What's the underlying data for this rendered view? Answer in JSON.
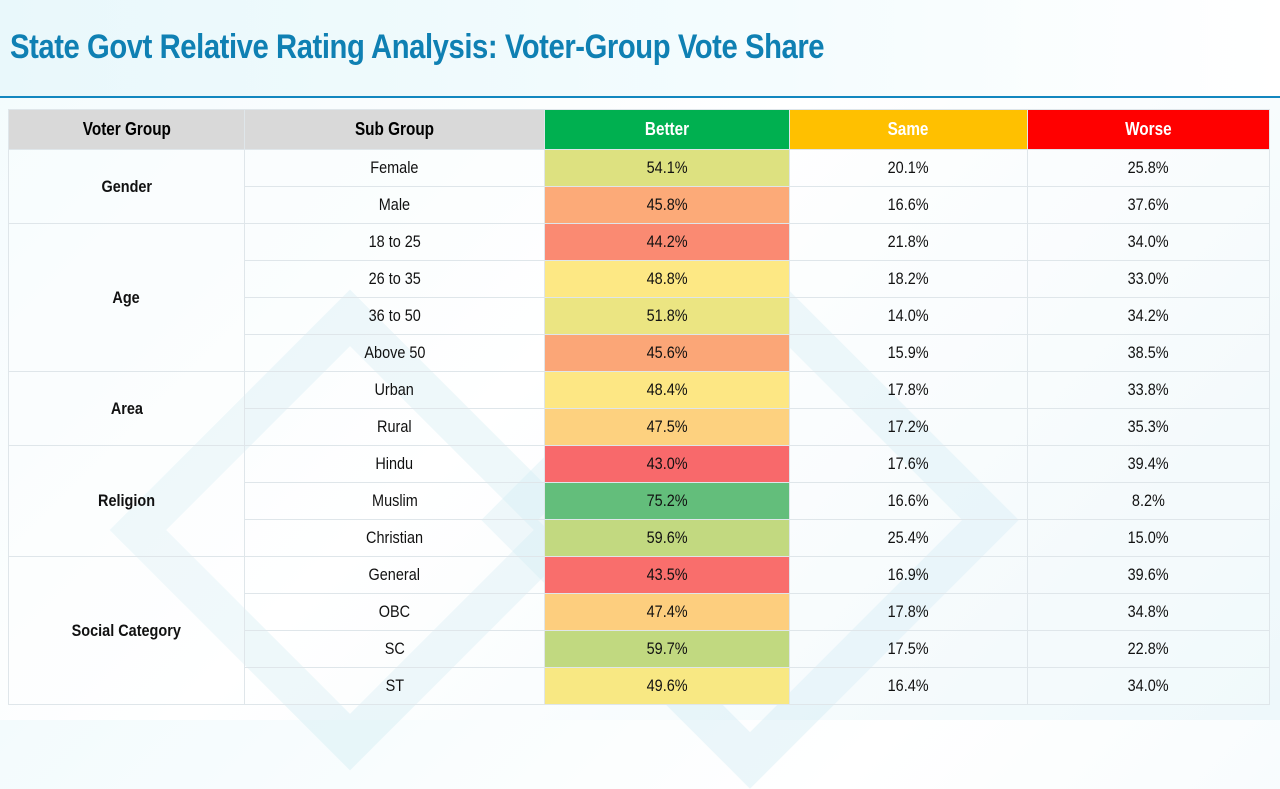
{
  "title": "State Govt Relative Rating Analysis: Voter-Group Vote Share",
  "chart_data": {
    "type": "table",
    "columns": [
      "Voter  Group",
      "Sub Group",
      "Better",
      "Same",
      "Worse"
    ],
    "header_colors": {
      "Better": "#00b050",
      "Same": "#ffc000",
      "Worse": "#ff0000"
    },
    "groups": [
      {
        "name": "Gender",
        "rows": [
          {
            "sub": "Female",
            "better": "54.1%",
            "better_color": "#dde180",
            "same": "20.1%",
            "worse": "25.8%"
          },
          {
            "sub": "Male",
            "better": "45.8%",
            "better_color": "#fcaa78",
            "same": "16.6%",
            "worse": "37.6%"
          }
        ]
      },
      {
        "name": "Age",
        "rows": [
          {
            "sub": "18  to  25",
            "better": "44.2%",
            "better_color": "#fa8a72",
            "same": "21.8%",
            "worse": "34.0%"
          },
          {
            "sub": "26 to  35",
            "better": "48.8%",
            "better_color": "#fde884",
            "same": "18.2%",
            "worse": "33.0%"
          },
          {
            "sub": "36  to  50",
            "better": "51.8%",
            "better_color": "#ebe582",
            "same": "14.0%",
            "worse": "34.2%"
          },
          {
            "sub": "Above  50",
            "better": "45.6%",
            "better_color": "#fba677",
            "same": "15.9%",
            "worse": "38.5%"
          }
        ]
      },
      {
        "name": "Area",
        "rows": [
          {
            "sub": "Urban",
            "better": "48.4%",
            "better_color": "#fde784",
            "same": "17.8%",
            "worse": "33.8%"
          },
          {
            "sub": "Rural",
            "better": "47.5%",
            "better_color": "#fdd17f",
            "same": "17.2%",
            "worse": "35.3%"
          }
        ]
      },
      {
        "name": "Religion",
        "rows": [
          {
            "sub": "Hindu",
            "better": "43.0%",
            "better_color": "#f8696b",
            "same": "17.6%",
            "worse": "39.4%"
          },
          {
            "sub": "Muslim",
            "better": "75.2%",
            "better_color": "#63be7b",
            "same": "16.6%",
            "worse": "8.2%"
          },
          {
            "sub": "Christian",
            "better": "59.6%",
            "better_color": "#c2d980",
            "same": "25.4%",
            "worse": "15.0%"
          }
        ]
      },
      {
        "name": "Social  Category",
        "rows": [
          {
            "sub": "General",
            "better": "43.5%",
            "better_color": "#f96e6c",
            "same": "16.9%",
            "worse": "39.6%"
          },
          {
            "sub": "OBC",
            "better": "47.4%",
            "better_color": "#fdce7e",
            "same": "17.8%",
            "worse": "34.8%"
          },
          {
            "sub": "SC",
            "better": "59.7%",
            "better_color": "#c1d980",
            "same": "17.5%",
            "worse": "22.8%"
          },
          {
            "sub": "ST",
            "better": "49.6%",
            "better_color": "#f8e883",
            "same": "16.4%",
            "worse": "34.0%"
          }
        ]
      }
    ]
  }
}
